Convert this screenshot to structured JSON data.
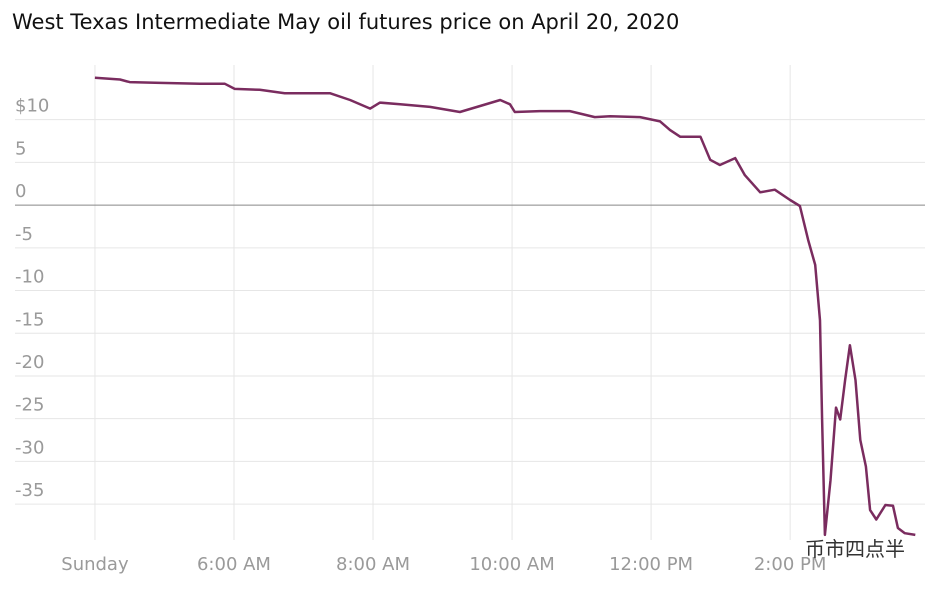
{
  "chart_data": {
    "type": "line",
    "title": "West Texas Intermediate May oil futures price on April 20, 2020",
    "x": [
      4.0,
      4.36,
      4.5,
      4.94,
      5.51,
      5.87,
      6.01,
      6.37,
      6.73,
      7.38,
      7.67,
      7.96,
      8.1,
      8.39,
      8.82,
      9.25,
      9.54,
      9.83,
      9.97,
      10.04,
      10.4,
      10.83,
      11.19,
      11.41,
      11.84,
      12.13,
      12.27,
      12.42,
      12.71,
      12.85,
      12.99,
      13.21,
      13.35,
      13.57,
      13.78,
      14.0,
      14.14,
      14.26,
      14.36,
      14.43,
      14.46,
      14.5,
      14.58,
      14.66,
      14.72,
      14.79,
      14.86,
      14.94,
      15.01,
      15.09,
      15.15,
      15.24,
      15.37,
      15.48,
      15.55,
      15.65,
      15.8
    ],
    "values": [
      14.9,
      14.7,
      14.4,
      14.3,
      14.2,
      14.2,
      13.6,
      13.5,
      13.1,
      13.1,
      12.3,
      11.3,
      12.0,
      11.8,
      11.5,
      10.9,
      11.6,
      12.3,
      11.8,
      10.9,
      11.0,
      11.0,
      10.3,
      10.4,
      10.3,
      9.8,
      8.8,
      8.0,
      8.0,
      5.3,
      4.7,
      5.5,
      3.5,
      1.5,
      1.8,
      0.6,
      -0.1,
      -4.1,
      -7.0,
      -13.5,
      -25.1,
      -38.6,
      -32.2,
      -23.7,
      -25.1,
      -20.5,
      -16.4,
      -20.5,
      -27.5,
      -30.6,
      -35.7,
      -36.8,
      -35.1,
      -35.2,
      -37.8,
      -38.4,
      -38.6
    ],
    "color": "#7a2c5f",
    "xlim": [
      2.85,
      15.94
    ],
    "xticks": [
      {
        "value": 4,
        "label": "Sunday"
      },
      {
        "value": 6,
        "label": "6:00 AM"
      },
      {
        "value": 8,
        "label": "8:00 AM"
      },
      {
        "value": 10,
        "label": "10:00 AM"
      },
      {
        "value": 12,
        "label": "12:00 PM"
      },
      {
        "value": 14,
        "label": "2:00 PM"
      }
    ],
    "ylim": [
      -39.2,
      16.4
    ],
    "yticks": [
      {
        "value": 10,
        "label": "$10"
      },
      5,
      0,
      -5,
      -10,
      -15,
      -20,
      -25,
      -30,
      -35
    ],
    "grid": true,
    "watermark": "币市四点半"
  }
}
